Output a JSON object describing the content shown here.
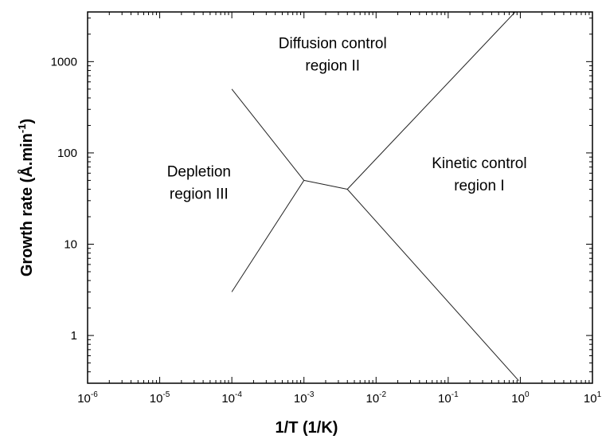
{
  "chart_data": {
    "type": "line",
    "x_scale": "log",
    "y_scale": "log",
    "xlim": [
      1e-06,
      10
    ],
    "ylim": [
      0.3,
      3500
    ],
    "grid": false,
    "xlabel": "1/T (1/K)",
    "ylabel": {
      "text": "Growth rate (Å.min",
      "sup": "-1",
      "close": ")"
    },
    "x_ticks": [
      {
        "base": "10",
        "exp": "-6",
        "value": 1e-06
      },
      {
        "base": "10",
        "exp": "-5",
        "value": 1e-05
      },
      {
        "base": "10",
        "exp": "-4",
        "value": 0.0001
      },
      {
        "base": "10",
        "exp": "-3",
        "value": 0.001
      },
      {
        "base": "10",
        "exp": "-2",
        "value": 0.01
      },
      {
        "base": "10",
        "exp": "-1",
        "value": 0.1
      },
      {
        "base": "10",
        "exp": "0",
        "value": 1
      },
      {
        "base": "10",
        "exp": "1",
        "value": 10
      }
    ],
    "y_ticks": [
      {
        "label": "1",
        "value": 1
      },
      {
        "label": "10",
        "value": 10
      },
      {
        "label": "100",
        "value": 100
      },
      {
        "label": "1000",
        "value": 1000
      }
    ],
    "series": [
      {
        "points": [
          [
            0.0001,
            500
          ],
          [
            0.001,
            50
          ]
        ]
      },
      {
        "points": [
          [
            0.0001,
            3
          ],
          [
            0.001,
            50
          ]
        ]
      },
      {
        "points": [
          [
            0.001,
            50
          ],
          [
            0.004,
            40
          ]
        ]
      },
      {
        "points": [
          [
            0.004,
            40
          ],
          [
            0.85,
            3500
          ]
        ]
      },
      {
        "points": [
          [
            0.004,
            40
          ],
          [
            0.95,
            0.32
          ]
        ]
      }
    ],
    "annotations": [
      {
        "lines": [
          "Diffusion control",
          "region II"
        ],
        "x": 0.0025,
        "y": 1400
      },
      {
        "lines": [
          "Depletion",
          "region III"
        ],
        "x": 3.5e-05,
        "y": 55
      },
      {
        "lines": [
          "Kinetic control",
          "region I"
        ],
        "x": 0.27,
        "y": 68
      }
    ]
  }
}
